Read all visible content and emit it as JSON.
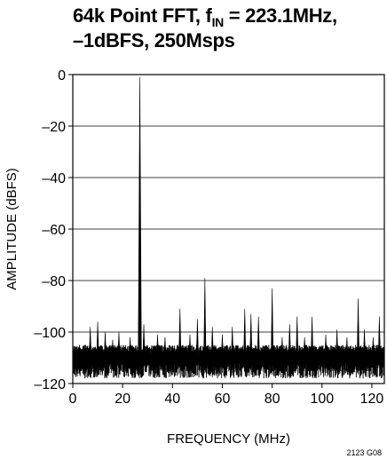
{
  "title": {
    "line1_prefix": "64k Point FFT, f",
    "line1_sub": "IN",
    "line1_suffix": " = 223.1MHz,",
    "line2": "–1dBFS, 250Msps"
  },
  "figure_id": "2123 G08",
  "chart_data": {
    "type": "line",
    "title": "64k Point FFT, fIN = 223.1MHz, –1dBFS, 250Msps",
    "xlabel": "FREQUENCY (MHz)",
    "ylabel": "AMPLITUDE (dBFS)",
    "xlim": [
      0,
      125
    ],
    "ylim": [
      -120,
      0
    ],
    "xticks": [
      0,
      20,
      40,
      60,
      80,
      100,
      120
    ],
    "xtick_labels": [
      "0",
      "20",
      "40",
      "60",
      "80",
      "100",
      "120"
    ],
    "yticks": [
      0,
      -20,
      -40,
      -60,
      -80,
      -100,
      -120
    ],
    "ytick_labels": [
      "0",
      "–20",
      "–40",
      "–60",
      "–80",
      "–100",
      "–120"
    ],
    "grid": "horizontal",
    "noise_floor": {
      "x_range": [
        0,
        125
      ],
      "y_range": [
        -112,
        -105
      ]
    },
    "spurs": [
      {
        "x": 26.9,
        "y": -1
      },
      {
        "x": 53.0,
        "y": -79
      },
      {
        "x": 80.0,
        "y": -83
      },
      {
        "x": 114.5,
        "y": -87
      },
      {
        "x": 69.0,
        "y": -91
      },
      {
        "x": 43.0,
        "y": -91
      },
      {
        "x": 71.5,
        "y": -93
      },
      {
        "x": 74.5,
        "y": -94
      },
      {
        "x": 123.0,
        "y": -94
      },
      {
        "x": 90.0,
        "y": -94
      },
      {
        "x": 96.0,
        "y": -94
      },
      {
        "x": 50.0,
        "y": -95
      },
      {
        "x": 10.0,
        "y": -96
      },
      {
        "x": 7.0,
        "y": -98
      },
      {
        "x": 28.5,
        "y": -97
      },
      {
        "x": 87.0,
        "y": -97
      },
      {
        "x": 56.0,
        "y": -98
      },
      {
        "x": 64.0,
        "y": -98
      },
      {
        "x": 117.0,
        "y": -99
      },
      {
        "x": 106.0,
        "y": -99
      },
      {
        "x": 13.0,
        "y": -100
      },
      {
        "x": 18.5,
        "y": -100
      },
      {
        "x": 34.0,
        "y": -101
      },
      {
        "x": 47.0,
        "y": -101
      },
      {
        "x": 60.0,
        "y": -101
      },
      {
        "x": 101.5,
        "y": -101
      },
      {
        "x": 37.0,
        "y": -102
      },
      {
        "x": 84.0,
        "y": -102
      },
      {
        "x": 93.0,
        "y": -102
      },
      {
        "x": 110.0,
        "y": -102
      },
      {
        "x": 120.5,
        "y": -102
      },
      {
        "x": 16.0,
        "y": -103
      },
      {
        "x": 23.0,
        "y": -102
      }
    ]
  }
}
